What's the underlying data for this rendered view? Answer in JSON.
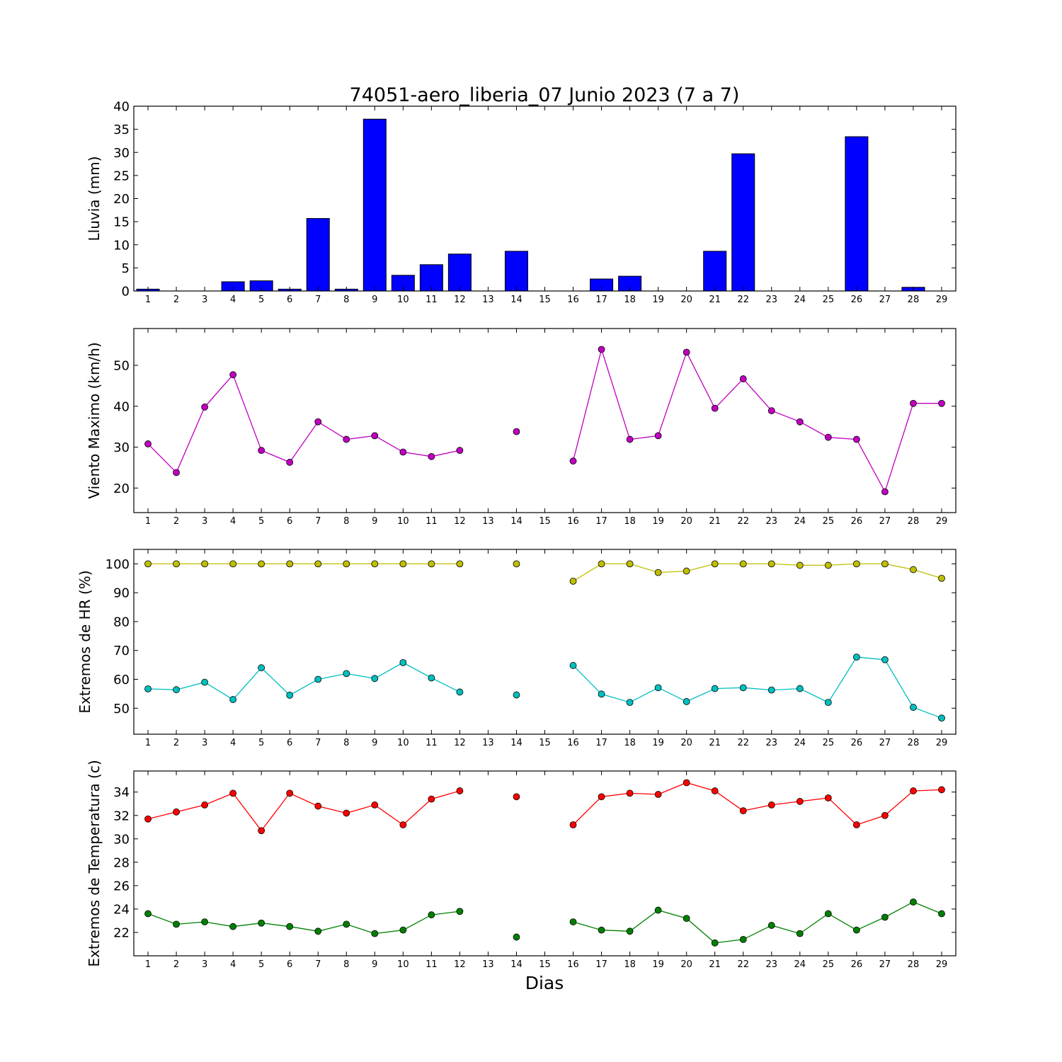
{
  "figure": {
    "title": "74051-aero_liberia_07 Junio 2023  (7 a 7)",
    "xlabel": "Dias"
  },
  "chart_data": [
    {
      "type": "bar",
      "ylabel": "Lluvia (mm)",
      "x": [
        1,
        2,
        3,
        4,
        5,
        6,
        7,
        8,
        9,
        10,
        11,
        12,
        13,
        14,
        15,
        16,
        17,
        18,
        19,
        20,
        21,
        22,
        23,
        24,
        25,
        26,
        27,
        28,
        29
      ],
      "xlim": [
        0.5,
        29.5
      ],
      "ylim": [
        0,
        40
      ],
      "yticks": [
        0,
        5,
        10,
        15,
        20,
        25,
        30,
        35,
        40
      ],
      "grid": false,
      "series": [
        {
          "color": "#0000ff",
          "values": [
            0.4,
            0,
            0,
            2.0,
            2.2,
            0.4,
            15.7,
            0.4,
            37.2,
            3.4,
            5.7,
            8.0,
            null,
            8.6,
            null,
            0,
            2.6,
            3.2,
            0,
            0,
            8.6,
            29.7,
            0,
            0,
            0,
            33.4,
            0,
            0.8,
            0
          ]
        }
      ]
    },
    {
      "type": "line",
      "ylabel": "Viento Maximo (km/h)",
      "x": [
        1,
        2,
        3,
        4,
        5,
        6,
        7,
        8,
        9,
        10,
        11,
        12,
        13,
        14,
        15,
        16,
        17,
        18,
        19,
        20,
        21,
        22,
        23,
        24,
        25,
        26,
        27,
        28,
        29
      ],
      "xlim": [
        0.5,
        29.5
      ],
      "ylim": [
        14,
        59
      ],
      "yticks": [
        20,
        30,
        40,
        50
      ],
      "grid": false,
      "series": [
        {
          "color": "#bf00bf",
          "values": [
            30.8,
            23.8,
            39.8,
            47.7,
            29.2,
            26.3,
            36.2,
            31.9,
            32.8,
            28.8,
            27.7,
            29.2,
            null,
            33.8,
            null,
            26.6,
            53.9,
            31.9,
            32.8,
            53.2,
            39.5,
            46.7,
            38.9,
            36.2,
            32.4,
            31.9,
            19.1,
            40.7,
            40.7
          ]
        }
      ]
    },
    {
      "type": "line",
      "ylabel": "Extremos de HR (%)",
      "x": [
        1,
        2,
        3,
        4,
        5,
        6,
        7,
        8,
        9,
        10,
        11,
        12,
        13,
        14,
        15,
        16,
        17,
        18,
        19,
        20,
        21,
        22,
        23,
        24,
        25,
        26,
        27,
        28,
        29
      ],
      "xlim": [
        0.5,
        29.5
      ],
      "ylim": [
        41,
        105
      ],
      "yticks": [
        50,
        60,
        70,
        80,
        90,
        100
      ],
      "grid": false,
      "series": [
        {
          "color": "#bfbf00",
          "values": [
            100,
            100,
            100,
            100,
            100,
            100,
            100,
            100,
            100,
            100,
            100,
            100,
            null,
            100,
            null,
            94,
            100,
            100,
            97,
            97.5,
            100,
            100,
            100,
            99.5,
            99.5,
            100,
            100,
            98,
            95
          ]
        },
        {
          "color": "#00bfbf",
          "values": [
            56.7,
            56.4,
            59,
            53,
            64,
            54.5,
            60,
            62,
            60.3,
            65.8,
            60.5,
            55.6,
            null,
            54.6,
            null,
            64.8,
            54.9,
            52,
            57.1,
            52.3,
            56.8,
            57.1,
            56.3,
            56.8,
            52,
            67.7,
            66.8,
            50.3,
            46.6
          ]
        }
      ]
    },
    {
      "type": "line",
      "ylabel": "Extremos de Temperatura (c)",
      "x": [
        1,
        2,
        3,
        4,
        5,
        6,
        7,
        8,
        9,
        10,
        11,
        12,
        13,
        14,
        15,
        16,
        17,
        18,
        19,
        20,
        21,
        22,
        23,
        24,
        25,
        26,
        27,
        28,
        29
      ],
      "xlim": [
        0.5,
        29.5
      ],
      "ylim": [
        20,
        35.8
      ],
      "yticks": [
        22,
        24,
        26,
        28,
        30,
        32,
        34
      ],
      "grid": false,
      "series": [
        {
          "color": "#ff0000",
          "values": [
            31.7,
            32.3,
            32.9,
            33.9,
            30.7,
            33.9,
            32.8,
            32.2,
            32.9,
            31.2,
            33.4,
            34.1,
            null,
            33.6,
            null,
            31.2,
            33.6,
            33.9,
            33.8,
            34.8,
            34.1,
            32.4,
            32.9,
            33.2,
            33.5,
            31.2,
            32.0,
            34.1,
            34.2
          ]
        },
        {
          "color": "#008000",
          "values": [
            23.6,
            22.7,
            22.9,
            22.5,
            22.8,
            22.5,
            22.1,
            22.7,
            21.9,
            22.2,
            23.5,
            23.8,
            null,
            21.6,
            null,
            22.9,
            22.2,
            22.1,
            23.9,
            23.2,
            21.1,
            21.4,
            22.6,
            21.9,
            23.6,
            22.2,
            23.3,
            24.6,
            23.6
          ]
        }
      ]
    }
  ]
}
